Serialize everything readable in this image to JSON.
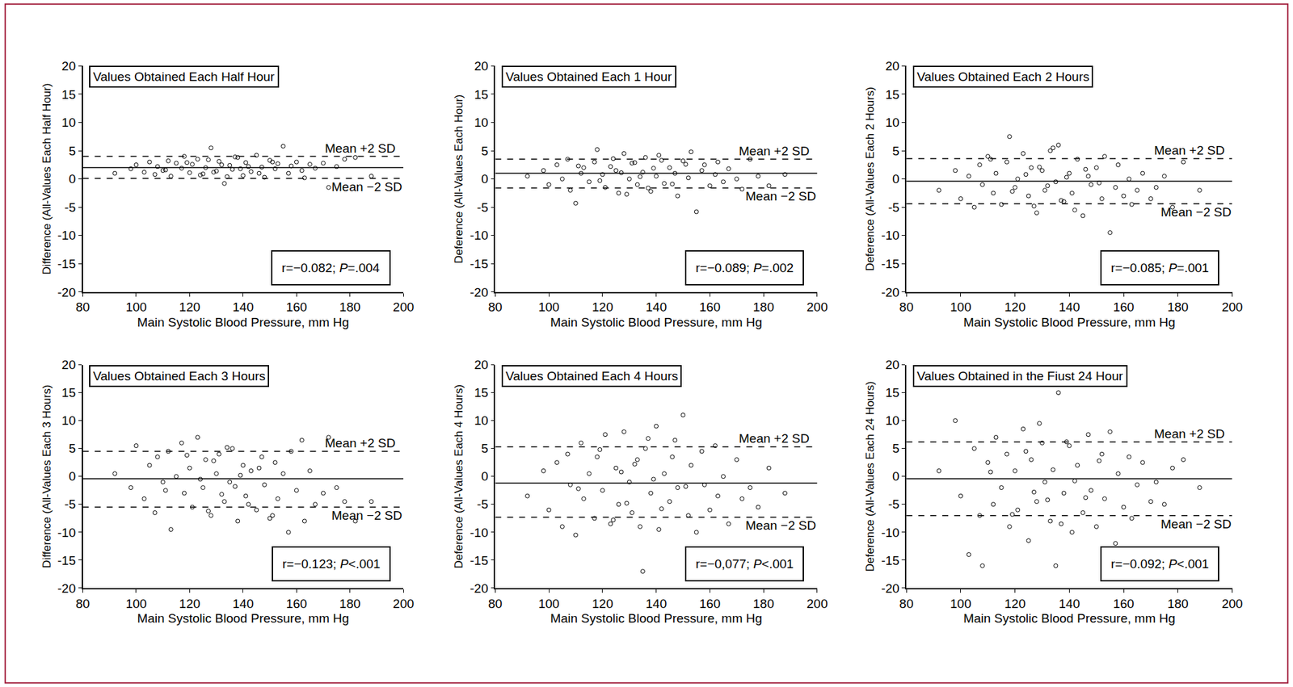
{
  "chart_data": [
    {
      "type": "scatter",
      "title": "Values Obtained Each Half Hour",
      "x_label": "Main Systolic Blood Pressure, mm Hg",
      "y_label": "Difference (All-Values Each Half Hour)",
      "x": [
        92,
        98,
        100,
        103,
        105,
        107,
        108,
        110,
        112,
        113,
        115,
        117,
        118,
        120,
        121,
        123,
        125,
        126,
        128,
        130,
        131,
        133,
        135,
        136,
        138,
        140,
        141,
        143,
        145,
        147,
        148,
        150,
        152,
        153,
        155,
        157,
        158,
        160,
        162,
        163,
        165,
        167,
        170,
        172,
        175,
        178,
        182,
        188,
        111,
        119,
        124,
        127,
        129,
        132,
        134,
        137,
        139,
        142,
        146,
        151
      ],
      "values": [
        1.0,
        1.8,
        2.5,
        1.2,
        3.0,
        0.8,
        2.2,
        1.5,
        3.2,
        0.5,
        2.8,
        1.9,
        4.0,
        1.1,
        2.6,
        3.5,
        0.9,
        2.0,
        5.5,
        1.4,
        3.1,
        -0.8,
        2.4,
        1.7,
        3.8,
        0.6,
        2.9,
        1.3,
        4.2,
        2.1,
        0.3,
        3.3,
        1.8,
        2.7,
        5.8,
        1.0,
        2.3,
        3.0,
        1.5,
        0.2,
        2.6,
        1.9,
        2.8,
        -1.5,
        2.2,
        3.5,
        3.8,
        0.5,
        1.6,
        2.9,
        0.7,
        3.4,
        1.2,
        2.5,
        0.4,
        3.9,
        1.8,
        2.2,
        1.0,
        3.0
      ],
      "xlim": [
        80,
        200
      ],
      "xticks": [
        80,
        100,
        120,
        140,
        160,
        180,
        200
      ],
      "ylim": [
        -20,
        20
      ],
      "yticks": [
        -20,
        -15,
        -10,
        -5,
        0,
        5,
        10,
        15,
        20
      ],
      "mean": 2.0,
      "upper_limit": 4.0,
      "lower_limit": 0.1,
      "annotations": [
        "Mean +2 SD",
        "Mean −2 SD"
      ],
      "stats": "r=−0.082; P=.004",
      "marker": "circle-open",
      "color": "#000000"
    },
    {
      "type": "scatter",
      "title": "Values Obtained Each 1 Hour",
      "x_label": "Main Systolic Blood Pressure, mm Hg",
      "y_label": "Deference (All-Values Each Hour)",
      "x": [
        92,
        98,
        100,
        103,
        105,
        107,
        108,
        110,
        112,
        113,
        115,
        117,
        118,
        120,
        121,
        123,
        125,
        126,
        128,
        130,
        131,
        133,
        135,
        136,
        138,
        140,
        141,
        143,
        145,
        147,
        148,
        150,
        152,
        153,
        155,
        157,
        158,
        160,
        162,
        163,
        165,
        167,
        170,
        172,
        175,
        178,
        182,
        188,
        111,
        119,
        124,
        127,
        129,
        132,
        134,
        137,
        139,
        142,
        146,
        151
      ],
      "values": [
        0.5,
        1.5,
        -1.0,
        2.5,
        0.0,
        3.5,
        -2.0,
        -4.3,
        1.0,
        2.0,
        -0.5,
        3.0,
        5.2,
        0.8,
        -1.5,
        2.2,
        1.5,
        -2.5,
        4.5,
        0.0,
        2.8,
        -1.0,
        1.2,
        3.8,
        -2.2,
        0.5,
        4.2,
        -0.8,
        2.0,
        1.0,
        -3.0,
        3.2,
        0.2,
        4.8,
        -5.8,
        1.5,
        2.5,
        -1.2,
        0.8,
        3.0,
        -0.5,
        1.8,
        0.0,
        -1.8,
        3.5,
        0.5,
        -1.2,
        0.8,
        2.3,
        -0.3,
        3.6,
        1.1,
        -2.7,
        2.9,
        0.4,
        -1.6,
        1.9,
        3.3,
        -0.9,
        2.6
      ],
      "xlim": [
        80,
        200
      ],
      "xticks": [
        80,
        100,
        120,
        140,
        160,
        180,
        200
      ],
      "ylim": [
        -20,
        20
      ],
      "yticks": [
        -20,
        -15,
        -10,
        -5,
        0,
        5,
        10,
        15,
        20
      ],
      "mean": 1.0,
      "upper_limit": 3.5,
      "lower_limit": -1.6,
      "annotations": [
        "Mean +2 SD",
        "Mean −2 SD"
      ],
      "stats": "r=−0.089; P=.002",
      "marker": "circle-open",
      "color": "#000000"
    },
    {
      "type": "scatter",
      "title": "Values Obtained Each 2 Hours",
      "x_label": "Main Systolic Blood Pressure, mm Hg",
      "y_label": "Deference (All-Values Each 2 Hours)",
      "x": [
        92,
        98,
        100,
        103,
        105,
        107,
        108,
        110,
        112,
        113,
        115,
        117,
        118,
        120,
        121,
        123,
        125,
        126,
        128,
        130,
        131,
        133,
        135,
        136,
        138,
        140,
        141,
        143,
        145,
        147,
        148,
        150,
        152,
        153,
        155,
        157,
        158,
        160,
        162,
        163,
        165,
        167,
        170,
        172,
        175,
        178,
        182,
        188,
        111,
        119,
        124,
        127,
        129,
        132,
        134,
        137,
        139,
        142,
        146,
        151
      ],
      "values": [
        -2.0,
        1.5,
        -3.5,
        0.5,
        -5.0,
        2.5,
        -1.0,
        4.0,
        -2.5,
        1.0,
        -4.5,
        3.0,
        7.5,
        -1.5,
        0.0,
        4.5,
        -3.0,
        2.0,
        -6.0,
        1.5,
        -2.0,
        5.0,
        -0.5,
        6.0,
        -4.0,
        1.0,
        -2.5,
        3.5,
        -6.5,
        0.5,
        -1.0,
        2.0,
        -3.5,
        4.0,
        -9.5,
        -1.5,
        2.5,
        -3.0,
        0.0,
        -4.5,
        -2.0,
        1.0,
        -3.5,
        -1.5,
        0.5,
        -5.0,
        3.0,
        -2.0,
        3.5,
        -2.2,
        0.8,
        -4.8,
        2.1,
        -1.2,
        5.5,
        -3.8,
        0.3,
        -5.5,
        1.7,
        -0.7
      ],
      "xlim": [
        80,
        200
      ],
      "xticks": [
        80,
        100,
        120,
        140,
        160,
        180,
        200
      ],
      "ylim": [
        -20,
        20
      ],
      "yticks": [
        -20,
        -15,
        -10,
        -5,
        0,
        5,
        10,
        15,
        20
      ],
      "mean": -0.4,
      "upper_limit": 3.6,
      "lower_limit": -4.4,
      "annotations": [
        "Mean +2 SD",
        "Mean −2 SD"
      ],
      "stats": "r=−0.085; P=.001",
      "marker": "circle-open",
      "color": "#000000"
    },
    {
      "type": "scatter",
      "title": "Values Obtained Each 3 Hours",
      "x_label": "Main Systolic Blood Pressure, mm Hg",
      "y_label": "Difference (All-Values Each 3 Hours)",
      "x": [
        92,
        98,
        100,
        103,
        105,
        107,
        108,
        110,
        112,
        113,
        115,
        117,
        118,
        120,
        121,
        123,
        125,
        126,
        128,
        130,
        131,
        133,
        135,
        136,
        138,
        140,
        141,
        143,
        145,
        147,
        148,
        150,
        152,
        153,
        155,
        157,
        158,
        160,
        162,
        163,
        165,
        167,
        170,
        172,
        175,
        178,
        182,
        188,
        111,
        119,
        124,
        127,
        129,
        132,
        134,
        137,
        139,
        142,
        146,
        151
      ],
      "values": [
        0.5,
        -2.0,
        5.5,
        -4.0,
        2.0,
        -6.5,
        3.5,
        -1.0,
        4.5,
        -9.5,
        0.0,
        6.0,
        -3.0,
        1.5,
        -5.5,
        7.0,
        -2.0,
        3.0,
        -7.0,
        0.5,
        4.0,
        -4.5,
        -1.0,
        5.0,
        -8.0,
        2.0,
        -3.5,
        1.0,
        -6.0,
        3.5,
        -1.5,
        -7.5,
        2.5,
        -4.0,
        0.5,
        -10.0,
        4.5,
        -2.5,
        6.5,
        -8.0,
        1.0,
        -5.0,
        -3.0,
        7.0,
        -2.0,
        -4.5,
        -8.0,
        -4.5,
        -2.5,
        3.8,
        -0.5,
        -6.2,
        2.8,
        -3.2,
        5.2,
        -1.8,
        0.2,
        -5.0,
        1.5,
        -7.0
      ],
      "xlim": [
        80,
        200
      ],
      "xticks": [
        80,
        100,
        120,
        140,
        160,
        180,
        200
      ],
      "ylim": [
        -20,
        20
      ],
      "yticks": [
        -20,
        -15,
        -10,
        -5,
        0,
        5,
        10,
        15,
        20
      ],
      "mean": -0.4,
      "upper_limit": 4.5,
      "lower_limit": -5.5,
      "annotations": [
        "Mean +2 SD",
        "Mean −2 SD"
      ],
      "stats": "r=−0.123; P<.001",
      "marker": "circle-open",
      "color": "#000000"
    },
    {
      "type": "scatter",
      "title": "Values Obtained Each 4 Hours",
      "x_label": "Main Systolic Blood Pressure, mm Hg",
      "y_label": "Deference (All-Values Each 4 Hours)",
      "x": [
        92,
        98,
        100,
        103,
        105,
        107,
        108,
        110,
        112,
        113,
        115,
        117,
        118,
        120,
        121,
        123,
        125,
        126,
        128,
        130,
        131,
        133,
        135,
        136,
        138,
        140,
        141,
        143,
        145,
        147,
        148,
        150,
        152,
        153,
        155,
        157,
        158,
        160,
        162,
        163,
        165,
        167,
        170,
        172,
        175,
        178,
        182,
        188,
        111,
        119,
        124,
        127,
        129,
        132,
        134,
        137,
        139,
        142,
        146,
        151
      ],
      "values": [
        -3.5,
        1.0,
        -6.0,
        2.5,
        -9.0,
        4.0,
        -1.5,
        -10.5,
        6.0,
        -4.0,
        0.5,
        -7.5,
        3.5,
        -2.5,
        7.5,
        -8.5,
        1.5,
        -5.0,
        8.0,
        -1.0,
        -6.5,
        3.0,
        -17.0,
        5.0,
        -3.0,
        9.0,
        -9.5,
        0.5,
        -4.5,
        6.5,
        -2.0,
        11.0,
        -7.0,
        2.0,
        -10.0,
        4.5,
        -1.5,
        -6.0,
        5.5,
        -3.5,
        0.0,
        -8.5,
        3.0,
        -4.0,
        -2.0,
        -5.5,
        1.5,
        -3.0,
        -2.2,
        4.8,
        -7.8,
        0.8,
        -4.8,
        2.2,
        -9.0,
        6.8,
        -0.5,
        -5.8,
        3.5,
        -1.8
      ],
      "xlim": [
        80,
        200
      ],
      "xticks": [
        80,
        100,
        120,
        140,
        160,
        180,
        200
      ],
      "ylim": [
        -20,
        20
      ],
      "yticks": [
        -20,
        -15,
        -10,
        -5,
        0,
        5,
        10,
        15,
        20
      ],
      "mean": -1.2,
      "upper_limit": 5.3,
      "lower_limit": -7.3,
      "annotations": [
        "Mean +2 SD",
        "Mean −2 SD"
      ],
      "stats": "r=−0,077; P<.001",
      "marker": "circle-open",
      "color": "#000000"
    },
    {
      "type": "scatter",
      "title": "Values Obtained in the Fiust 24 Hour",
      "x_label": "Main Systolic Blood Pressure, mm Hg",
      "y_label": "Deference (All-Values Each 24 Hours)",
      "x": [
        92,
        98,
        100,
        103,
        105,
        107,
        108,
        110,
        112,
        113,
        115,
        117,
        118,
        120,
        121,
        123,
        125,
        126,
        128,
        130,
        131,
        133,
        135,
        136,
        138,
        140,
        141,
        143,
        145,
        147,
        148,
        150,
        152,
        153,
        155,
        157,
        158,
        160,
        162,
        163,
        165,
        167,
        170,
        172,
        175,
        178,
        182,
        188,
        111,
        119,
        124,
        127,
        129,
        132,
        134,
        137,
        139,
        142,
        146,
        151
      ],
      "values": [
        1.0,
        10.0,
        -3.5,
        -14.0,
        5.0,
        -7.0,
        -16.0,
        2.5,
        -5.0,
        7.0,
        -2.0,
        4.0,
        -9.0,
        1.0,
        -6.0,
        8.5,
        -11.5,
        3.0,
        -4.5,
        6.0,
        -1.0,
        -8.0,
        -16.0,
        15.0,
        -3.0,
        5.5,
        -10.0,
        2.0,
        -6.5,
        7.5,
        -2.5,
        -9.0,
        4.0,
        -4.0,
        8.0,
        -12.0,
        0.5,
        -5.5,
        3.5,
        -7.5,
        -1.5,
        2.5,
        -4.5,
        -1.0,
        -5.0,
        1.5,
        3.0,
        -2.0,
        0.8,
        -6.8,
        4.5,
        -2.8,
        9.5,
        -4.2,
        1.2,
        -8.5,
        6.2,
        -0.8,
        -3.8,
        2.8
      ],
      "xlim": [
        80,
        200
      ],
      "xticks": [
        80,
        100,
        120,
        140,
        160,
        180,
        200
      ],
      "ylim": [
        -20,
        20
      ],
      "yticks": [
        -20,
        -15,
        -10,
        -5,
        0,
        5,
        10,
        15,
        20
      ],
      "mean": -0.4,
      "upper_limit": 6.2,
      "lower_limit": -7.0,
      "annotations": [
        "Mean +2 SD",
        "Mean −2 SD"
      ],
      "stats": "r=−0.092; P<.001",
      "marker": "circle-open",
      "color": "#000000"
    }
  ]
}
